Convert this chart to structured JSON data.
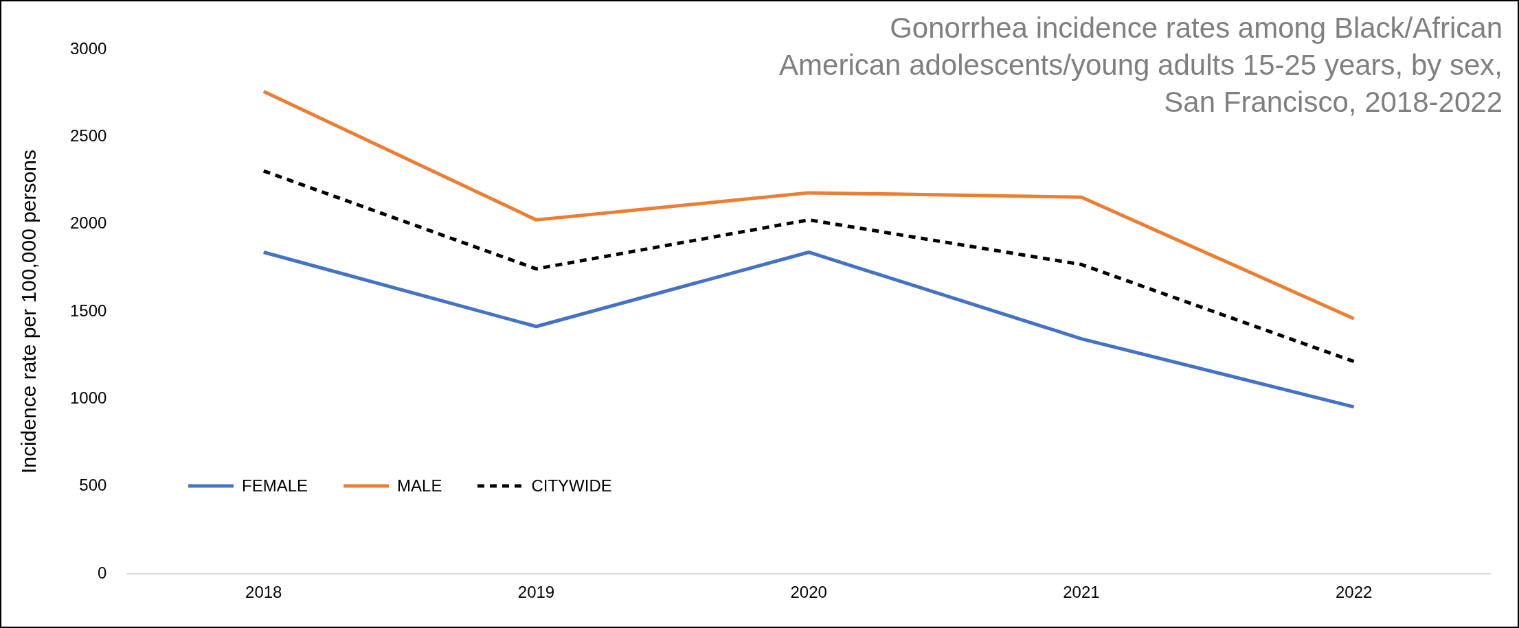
{
  "chart_data": {
    "type": "line",
    "title": "Gonorrhea incidence rates among Black/African American adolescents/young adults 15-25 years, by sex, San Francisco, 2018-2022",
    "ylabel": "Incidence rate per 100,000 persons",
    "categories": [
      "2018",
      "2019",
      "2020",
      "2021",
      "2022"
    ],
    "series": [
      {
        "name": "FEMALE",
        "color": "#4472c4",
        "values": [
          1840,
          1415,
          1840,
          1345,
          955
        ]
      },
      {
        "name": "MALE",
        "color": "#ed7d31",
        "values": [
          2760,
          2025,
          2180,
          2155,
          1460
        ]
      },
      {
        "name": "CITYWIDE",
        "color": "#000000",
        "line_style": "dashed",
        "values": [
          2305,
          1745,
          2025,
          1770,
          1215
        ]
      }
    ],
    "ylim": [
      0,
      3000
    ],
    "yticks": [
      0,
      500,
      1000,
      1500,
      2000,
      2500,
      3000
    ],
    "grid": false,
    "legend": "bottom left",
    "marker": "none"
  }
}
